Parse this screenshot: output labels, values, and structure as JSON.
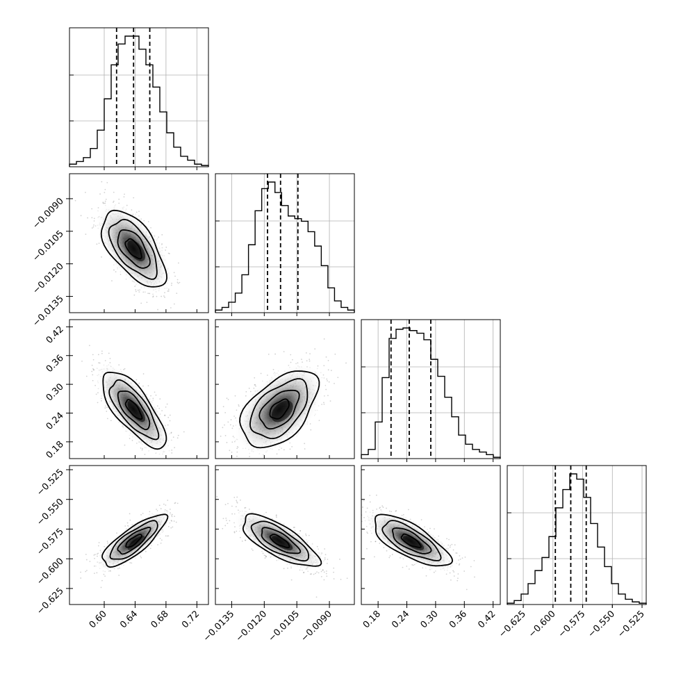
{
  "chart_data": {
    "type": "corner",
    "grid": true,
    "parameters": [
      {
        "ticks": [
          "0.60",
          "0.64",
          "0.68",
          "0.72"
        ],
        "range": [
          0.555,
          0.735
        ],
        "quantiles": [
          0.616,
          0.638,
          0.659
        ]
      },
      {
        "ticks": [
          "−0.0135",
          "−0.0120",
          "−0.0105",
          "−0.0090"
        ],
        "range": [
          -0.01425,
          -0.00785
        ],
        "quantiles": [
          -0.01185,
          -0.01125,
          -0.01045
        ]
      },
      {
        "ticks": [
          "0.18",
          "0.24",
          "0.30",
          "0.36",
          "0.42"
        ],
        "range": [
          0.145,
          0.435
        ],
        "quantiles": [
          0.207,
          0.245,
          0.29
        ]
      },
      {
        "ticks": [
          "−0.625",
          "−0.600",
          "−0.575",
          "−0.550",
          "−0.525"
        ],
        "range": [
          -0.6385,
          -0.5215
        ],
        "quantiles": [
          -0.598,
          -0.585,
          -0.572
        ]
      }
    ],
    "histograms": [
      [
        0.02,
        0.04,
        0.07,
        0.14,
        0.28,
        0.52,
        0.78,
        0.94,
        1.0,
        1.0,
        0.9,
        0.78,
        0.61,
        0.42,
        0.26,
        0.15,
        0.08,
        0.05,
        0.02,
        0.01
      ],
      [
        0.02,
        0.04,
        0.08,
        0.15,
        0.29,
        0.52,
        0.78,
        0.95,
        1.0,
        0.92,
        0.82,
        0.74,
        0.72,
        0.7,
        0.62,
        0.51,
        0.36,
        0.19,
        0.09,
        0.04,
        0.02
      ],
      [
        0.03,
        0.07,
        0.28,
        0.62,
        0.92,
        0.99,
        1.0,
        0.98,
        0.96,
        0.91,
        0.76,
        0.63,
        0.47,
        0.32,
        0.18,
        0.11,
        0.07,
        0.05,
        0.03,
        0.01
      ],
      [
        0.01,
        0.03,
        0.08,
        0.16,
        0.26,
        0.36,
        0.52,
        0.74,
        0.88,
        1.0,
        0.96,
        0.82,
        0.62,
        0.44,
        0.29,
        0.16,
        0.08,
        0.04,
        0.02,
        0.01
      ]
    ],
    "pairs": [
      {
        "row": 1,
        "col": 0,
        "mean": [
          0.638,
          -0.0113
        ],
        "sd": [
          0.0205,
          0.00088
        ],
        "rho": -0.6
      },
      {
        "row": 2,
        "col": 0,
        "mean": [
          0.638,
          0.248
        ],
        "sd": [
          0.0205,
          0.04
        ],
        "rho": -0.74
      },
      {
        "row": 2,
        "col": 1,
        "mean": [
          -0.0113,
          0.248
        ],
        "sd": [
          0.00088,
          0.04
        ],
        "rho": 0.5
      },
      {
        "row": 3,
        "col": 0,
        "mean": [
          0.638,
          -0.585
        ],
        "sd": [
          0.0205,
          0.0108
        ],
        "rho": 0.8
      },
      {
        "row": 3,
        "col": 1,
        "mean": [
          -0.0113,
          -0.585
        ],
        "sd": [
          0.00088,
          0.0108
        ],
        "rho": -0.74
      },
      {
        "row": 3,
        "col": 2,
        "mean": [
          0.248,
          -0.585
        ],
        "sd": [
          0.04,
          0.0108
        ],
        "rho": -0.72
      }
    ]
  }
}
